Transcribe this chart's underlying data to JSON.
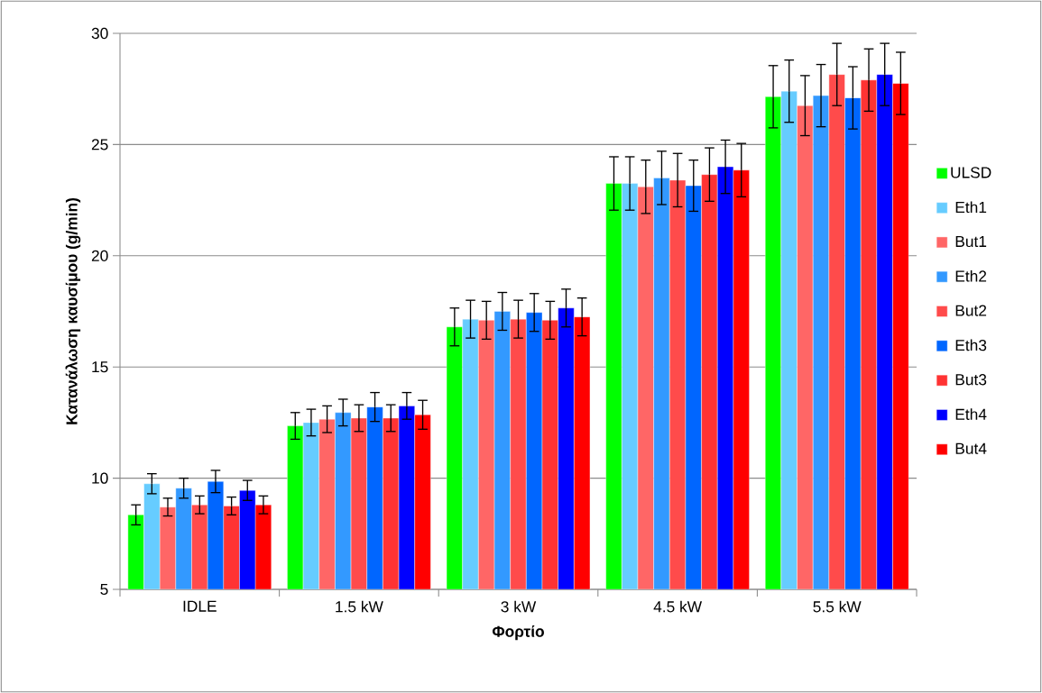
{
  "chart_data": {
    "type": "bar",
    "xlabel": "Φορτίο",
    "ylabel": "Κατανάλωση καυσίμου (g/min)",
    "categories": [
      "IDLE",
      "1.5 kW",
      "3 kW",
      "4.5 kW",
      "5.5 kW"
    ],
    "series": [
      {
        "name": "ULSD",
        "color": "#00ff00",
        "values": [
          8.35,
          12.35,
          16.8,
          23.25,
          27.15
        ],
        "errors": [
          0.45,
          0.6,
          0.85,
          1.2,
          1.4
        ]
      },
      {
        "name": "Eth1",
        "color": "#66ccff",
        "values": [
          9.75,
          12.5,
          17.15,
          23.25,
          27.4
        ],
        "errors": [
          0.45,
          0.6,
          0.85,
          1.2,
          1.4
        ]
      },
      {
        "name": "But1",
        "color": "#ff6666",
        "values": [
          8.7,
          12.65,
          17.1,
          23.1,
          26.75
        ],
        "errors": [
          0.4,
          0.6,
          0.85,
          1.2,
          1.35
        ]
      },
      {
        "name": "Eth2",
        "color": "#3399ff",
        "values": [
          9.55,
          12.95,
          17.5,
          23.5,
          27.2
        ],
        "errors": [
          0.45,
          0.6,
          0.85,
          1.2,
          1.4
        ]
      },
      {
        "name": "But2",
        "color": "#ff4b4b",
        "values": [
          8.8,
          12.7,
          17.15,
          23.4,
          28.15
        ],
        "errors": [
          0.4,
          0.6,
          0.85,
          1.2,
          1.4
        ]
      },
      {
        "name": "Eth3",
        "color": "#0066ff",
        "values": [
          9.85,
          13.2,
          17.45,
          23.15,
          27.1
        ],
        "errors": [
          0.5,
          0.65,
          0.85,
          1.15,
          1.4
        ]
      },
      {
        "name": "But3",
        "color": "#ff3333",
        "values": [
          8.75,
          12.7,
          17.1,
          23.65,
          27.9
        ],
        "errors": [
          0.4,
          0.6,
          0.85,
          1.2,
          1.4
        ]
      },
      {
        "name": "Eth4",
        "color": "#0000ff",
        "values": [
          9.45,
          13.25,
          17.65,
          24.0,
          28.15
        ],
        "errors": [
          0.45,
          0.6,
          0.85,
          1.2,
          1.4
        ]
      },
      {
        "name": "But4",
        "color": "#ff0000",
        "values": [
          8.8,
          12.85,
          17.25,
          23.85,
          27.75
        ],
        "errors": [
          0.4,
          0.65,
          0.85,
          1.2,
          1.4
        ]
      }
    ],
    "ylim": [
      5,
      30
    ],
    "yticks": [
      5,
      10,
      15,
      20,
      25,
      30
    ],
    "grid": "y",
    "legend": "right"
  }
}
